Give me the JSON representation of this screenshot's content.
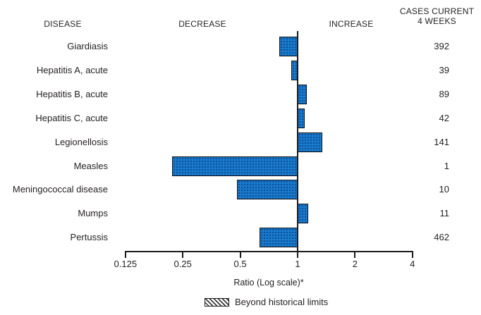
{
  "header": {
    "disease_label": "DISEASE",
    "decrease_label": "DECREASE",
    "increase_label": "INCREASE",
    "cases_label_line1": "CASES CURRENT",
    "cases_label_line2": "4 WEEKS"
  },
  "chart_data": {
    "type": "bar",
    "orientation": "horizontal",
    "scale": "log2",
    "axis": {
      "label": "Ratio (Log scale)*",
      "ticks": [
        0.125,
        0.25,
        0.5,
        1,
        2,
        4
      ],
      "tick_labels": [
        "0.125",
        "0.25",
        "0.5",
        "1",
        "2",
        "4"
      ],
      "xlim": [
        0.125,
        4
      ],
      "baseline": 1
    },
    "rows": [
      {
        "disease": "Giardiasis",
        "ratio": 0.8,
        "cases": "392",
        "beyond_historical_limits": false
      },
      {
        "disease": "Hepatitis A, acute",
        "ratio": 0.93,
        "cases": "39",
        "beyond_historical_limits": false
      },
      {
        "disease": "Hepatitis B, acute",
        "ratio": 1.12,
        "cases": "89",
        "beyond_historical_limits": false
      },
      {
        "disease": "Hepatitis C, acute",
        "ratio": 1.09,
        "cases": "42",
        "beyond_historical_limits": false
      },
      {
        "disease": "Legionellosis",
        "ratio": 1.35,
        "cases": "141",
        "beyond_historical_limits": false
      },
      {
        "disease": "Measles",
        "ratio": 0.22,
        "cases": "1",
        "beyond_historical_limits": false
      },
      {
        "disease": "Meningococcal disease",
        "ratio": 0.48,
        "cases": "10",
        "beyond_historical_limits": false
      },
      {
        "disease": "Mumps",
        "ratio": 1.14,
        "cases": "11",
        "beyond_historical_limits": false
      },
      {
        "disease": "Pertussis",
        "ratio": 0.63,
        "cases": "462",
        "beyond_historical_limits": false
      }
    ],
    "legend": {
      "label": "Beyond historical limits",
      "swatch": "diagonal-hatch"
    },
    "colors": {
      "bar_fill": "#1979ca",
      "bar_halftone_dot": "#0c4f9b",
      "bar_border": "#121212",
      "axis": "#1a1a1a",
      "text": "#231f20"
    }
  }
}
